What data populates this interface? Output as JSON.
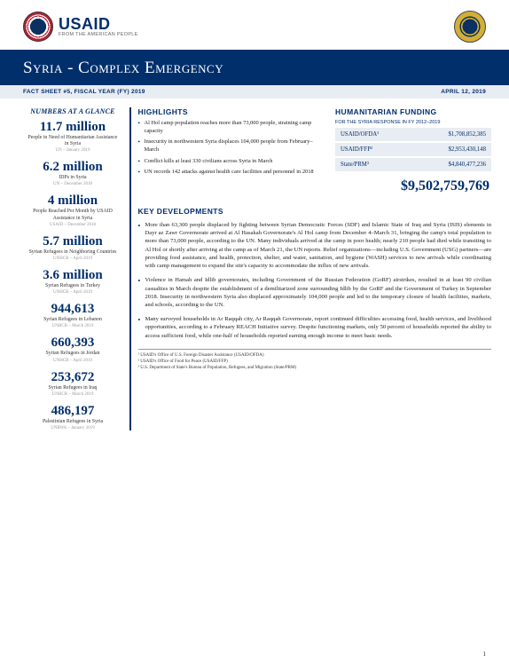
{
  "header": {
    "usaid_word": "USAID",
    "usaid_tagline": "FROM THE AMERICAN PEOPLE"
  },
  "title": {
    "country": "Syria",
    "emergency": "Complex Emergency",
    "factsheet": "FACT SHEET #5, FISCAL YEAR (FY) 2019",
    "date": "APRIL 12, 2019"
  },
  "sidebar": {
    "title": "NUMBERS AT A GLANCE",
    "stats": [
      {
        "value": "11.7 million",
        "label": "People in Need of Humanitarian Assistance in Syria",
        "src": "UN – January 2019"
      },
      {
        "value": "6.2 million",
        "label": "IDPs in Syria",
        "src": "UN – December 2018"
      },
      {
        "value": "4 million",
        "label": "People Reached Per Month by USAID Assistance in Syria",
        "src": "USAID – December 2018"
      },
      {
        "value": "5.7 million",
        "label": "Syrian Refugees in Neighboring Countries",
        "src": "UNHCR – April 2019"
      },
      {
        "value": "3.6 million",
        "label": "Syrian Refugees in Turkey",
        "src": "UNHCR – April 2019"
      },
      {
        "value": "944,613",
        "label": "Syrian Refugees in Lebanon",
        "src": "UNHCR – March 2019"
      },
      {
        "value": "660,393",
        "label": "Syrian Refugees in Jordan",
        "src": "UNHCR – April 2019"
      },
      {
        "value": "253,672",
        "label": "Syrian Refugees in Iraq",
        "src": "UNHCR – March 2019"
      },
      {
        "value": "486,197",
        "label": "Palestinian Refugees in Syria",
        "src": "UNRWA – January 2019"
      }
    ]
  },
  "highlights": {
    "title": "HIGHLIGHTS",
    "items": [
      "Al Hol camp population reaches more than 73,000 people, straining camp capacity",
      "Insecurity in northwestern Syria displaces 104,000 people from February–March",
      "Conflict kills at least 330 civilians across Syria in March",
      "UN records 142 attacks against health care facilities and personnel in 2018"
    ]
  },
  "funding": {
    "title": "HUMANITARIAN FUNDING",
    "subtitle": "FOR THE SYRIA RESPONSE IN FY 2012–2019",
    "rows": [
      {
        "label": "USAID/OFDA¹",
        "amount": "$1,708,852,385"
      },
      {
        "label": "USAID/FFP²",
        "amount": "$2,953,430,148"
      },
      {
        "label": "State/PRM³",
        "amount": "$4,840,477,236"
      }
    ],
    "total": "$9,502,759,769"
  },
  "developments": {
    "title": "KEY DEVELOPMENTS",
    "items": [
      "More than 63,300 people displaced by fighting between Syrian Democratic Forces (SDF) and Islamic State of Iraq and Syria (ISIS) elements in Dayr az Zawr Governorate arrived at Al Hasakah Governorate's Al Hol camp from December 4–March 31, bringing the camp's total population to more than 73,000 people, according to the UN. Many individuals arrived at the camp in poor health; nearly 210 people had died while transiting to Al Hol or shortly after arriving at the camp as of March 21, the UN reports. Relief organizations—including U.S. Government (USG) partners—are providing food assistance, and health, protection, shelter, and water, sanitation, and hygiene (WASH) services to new arrivals while coordinating with camp management to expand the site's capacity to accommodate the influx of new arrivals.",
      "Violence in Hamah and Idlib governorates, including Government of the Russian Federation (GoRF) airstrikes, resulted in at least 90 civilian casualties in March despite the establishment of a demilitarized zone surrounding Idlib by the GoRF and the Government of Turkey in September 2018. Insecurity in northwestern Syria also displaced approximately 104,000 people and led to the temporary closure of health facilities, markets, and schools, according to the UN.",
      "Many surveyed households in Ar Raqqah city, Ar Raqqah Governorate, report continued difficulties accessing food, health services, and livelihood opportunities, according to a February REACH Initiative survey. Despite functioning markets, only 50 percent of households reported the ability to access sufficient food, while one-half of households reported earning enough income to meet basic needs."
    ]
  },
  "footnotes": [
    "¹ USAID's Office of U.S. Foreign Disaster Assistance (USAID/OFDA)",
    "² USAID's Office of Food for Peace (USAID/FFP)",
    "³ U.S. Department of State's Bureau of Population, Refugees, and Migration (State/PRM)"
  ],
  "page_number": "1"
}
